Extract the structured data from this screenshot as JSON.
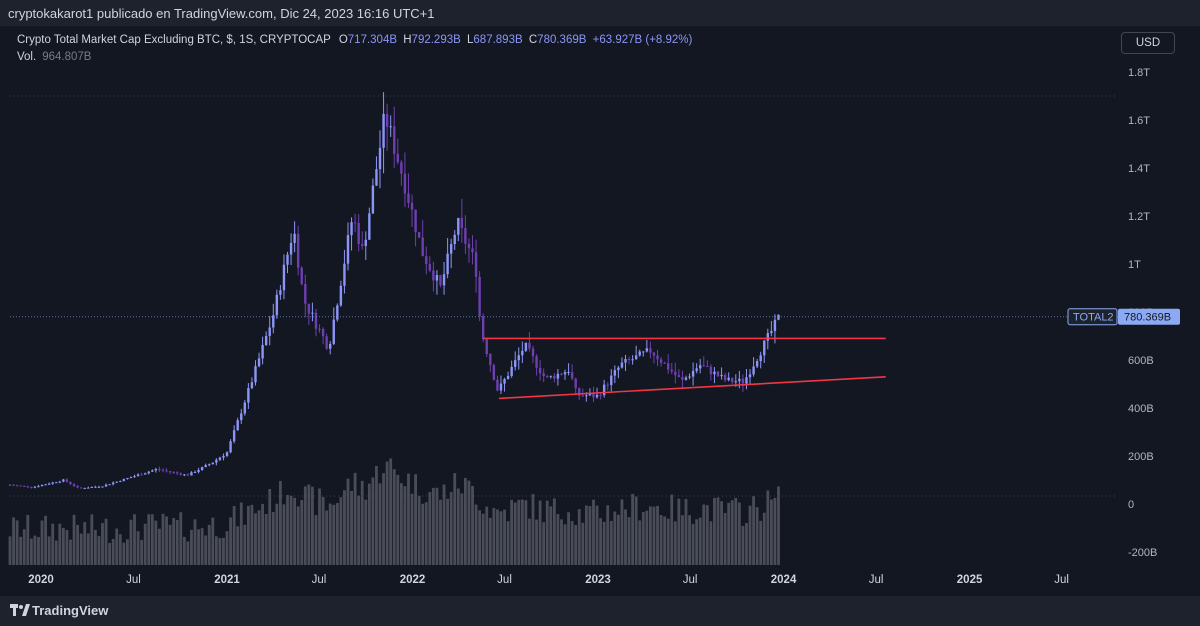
{
  "header": {
    "publisher": "cryptokakarot1 publicado en TradingView.com, Dic 24, 2023 16:16 UTC+1"
  },
  "legend": {
    "symbol": "Crypto Total Market Cap Excluding BTC, $, 1S, CRYPTOCAP",
    "o_label": "O",
    "o": "717.304B",
    "h_label": "H",
    "h": "792.293B",
    "l_label": "L",
    "l": "687.893B",
    "c_label": "C",
    "c": "780.369B",
    "change": "+63.927B (+8.92%)",
    "vol_label": "Vol.",
    "vol": "964.807B"
  },
  "currency_button": "USD",
  "footer": {
    "brand": "TradingView"
  },
  "colors": {
    "background": "#131722",
    "candle": "#8c95f7",
    "candle_dark": "#6e3fb0",
    "volume": "#5d606b",
    "trendline": "#f23645",
    "price_tag": "#8caaf4"
  },
  "chart_data": {
    "type": "candlestick",
    "title": "Crypto Total Market Cap Excluding BTC, $, 1S, CRYPTOCAP",
    "ylim": [
      -200,
      1800
    ],
    "yunit": "B (billions USD)",
    "y_ticks": [
      {
        "v": 1800,
        "label": "1.8T"
      },
      {
        "v": 1600,
        "label": "1.6T"
      },
      {
        "v": 1400,
        "label": "1.4T"
      },
      {
        "v": 1200,
        "label": "1.2T"
      },
      {
        "v": 1000,
        "label": "1T"
      },
      {
        "v": 800,
        "label": "800B"
      },
      {
        "v": 600,
        "label": "600B"
      },
      {
        "v": 400,
        "label": "400B"
      },
      {
        "v": 200,
        "label": "200B"
      },
      {
        "v": 0,
        "label": "0"
      },
      {
        "v": -200,
        "label": "-200B"
      }
    ],
    "x_range": [
      "2019-11-01",
      "2025-10-20"
    ],
    "x_ticks": [
      {
        "date": "2020-01-01",
        "label": "2020",
        "bold": true
      },
      {
        "date": "2020-07-01",
        "label": "Jul",
        "bold": false
      },
      {
        "date": "2021-01-01",
        "label": "2021",
        "bold": true
      },
      {
        "date": "2021-07-01",
        "label": "Jul",
        "bold": false
      },
      {
        "date": "2022-01-01",
        "label": "2022",
        "bold": true
      },
      {
        "date": "2022-07-01",
        "label": "Jul",
        "bold": false
      },
      {
        "date": "2023-01-01",
        "label": "2023",
        "bold": true
      },
      {
        "date": "2023-07-01",
        "label": "Jul",
        "bold": false
      },
      {
        "date": "2024-01-01",
        "label": "2024",
        "bold": true
      },
      {
        "date": "2024-07-01",
        "label": "Jul",
        "bold": false
      },
      {
        "date": "2025-01-01",
        "label": "2025",
        "bold": true
      },
      {
        "date": "2025-07-01",
        "label": "Jul",
        "bold": false
      }
    ],
    "close_series_keypoints": [
      [
        "2019-11-01",
        80
      ],
      [
        "2019-12-15",
        70
      ],
      [
        "2020-02-15",
        100
      ],
      [
        "2020-03-15",
        65
      ],
      [
        "2020-05-01",
        75
      ],
      [
        "2020-08-15",
        145
      ],
      [
        "2020-10-15",
        120
      ],
      [
        "2020-12-01",
        170
      ],
      [
        "2021-01-01",
        215
      ],
      [
        "2021-02-20",
        520
      ],
      [
        "2021-04-01",
        780
      ],
      [
        "2021-05-12",
        1150
      ],
      [
        "2021-06-01",
        850
      ],
      [
        "2021-07-20",
        650
      ],
      [
        "2021-09-05",
        1200
      ],
      [
        "2021-09-25",
        1050
      ],
      [
        "2021-11-08",
        1620
      ],
      [
        "2021-12-15",
        1350
      ],
      [
        "2022-01-20",
        1050
      ],
      [
        "2022-02-25",
        900
      ],
      [
        "2022-03-30",
        1170
      ],
      [
        "2022-05-05",
        1000
      ],
      [
        "2022-05-15",
        730
      ],
      [
        "2022-06-18",
        470
      ],
      [
        "2022-08-10",
        660
      ],
      [
        "2022-09-20",
        520
      ],
      [
        "2022-11-05",
        560
      ],
      [
        "2022-11-20",
        455
      ],
      [
        "2022-12-31",
        450
      ],
      [
        "2023-02-15",
        580
      ],
      [
        "2023-04-15",
        640
      ],
      [
        "2023-06-15",
        510
      ],
      [
        "2023-07-20",
        580
      ],
      [
        "2023-09-10",
        515
      ],
      [
        "2023-10-15",
        510
      ],
      [
        "2023-11-20",
        650
      ],
      [
        "2023-12-24",
        780
      ]
    ],
    "volume_scale_note": "volume bars drawn relative to bottom panel",
    "last_price": {
      "series": "TOTAL2",
      "value": 780.369,
      "label": "780.369B"
    },
    "trendlines": [
      {
        "name": "resistance",
        "from": [
          "2022-05-20",
          690
        ],
        "to": [
          "2024-07-20",
          690
        ]
      },
      {
        "name": "support",
        "from": [
          "2022-06-20",
          440
        ],
        "to": [
          "2024-07-20",
          530
        ]
      }
    ],
    "reference_line": {
      "value": 1700
    },
    "grid": false
  }
}
